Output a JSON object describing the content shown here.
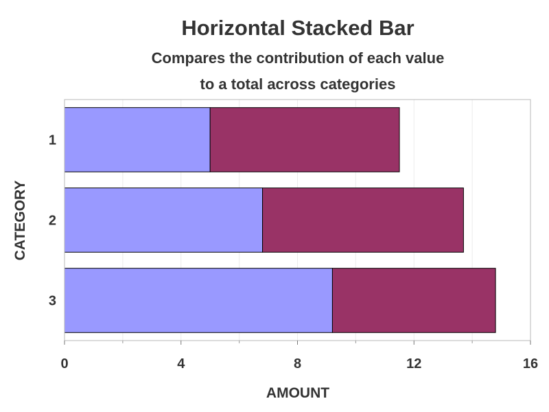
{
  "chart_data": {
    "type": "bar",
    "orientation": "horizontal",
    "stacked": true,
    "title": "Horizontal Stacked Bar",
    "subtitle_lines": [
      "Compares the contribution of each value",
      "to a total across categories"
    ],
    "xlabel": "AMOUNT",
    "ylabel": "CATEGORY",
    "categories": [
      "1",
      "2",
      "3"
    ],
    "series": [
      {
        "values": [
          5.0,
          6.8,
          9.2
        ],
        "color": "#9999ff"
      },
      {
        "values": [
          6.5,
          6.9,
          5.6
        ],
        "color": "#993366"
      }
    ],
    "xlim": [
      0,
      16
    ],
    "xticks": [
      "0",
      "4",
      "8",
      "12",
      "16"
    ],
    "grid": true,
    "legend": "none"
  }
}
